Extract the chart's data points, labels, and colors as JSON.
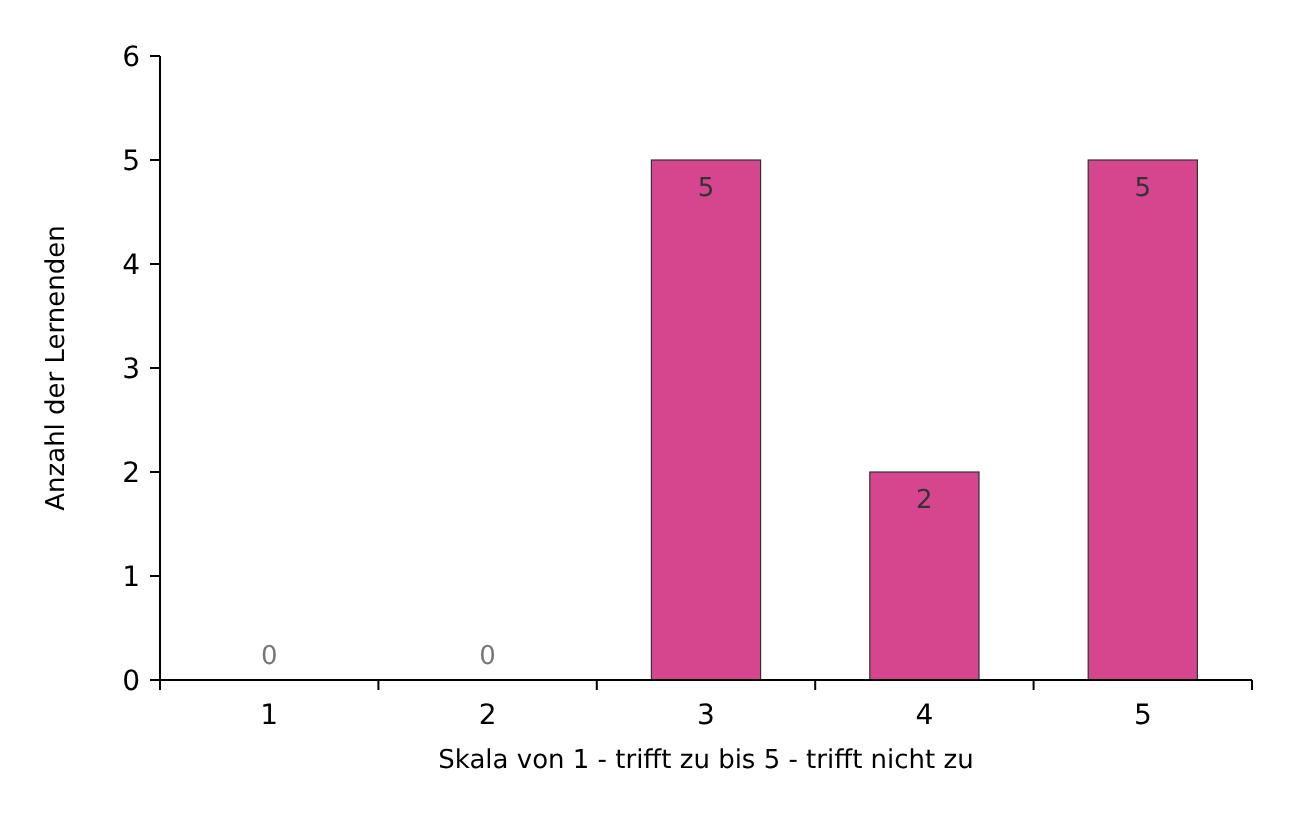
{
  "chart_data": {
    "type": "bar",
    "xlabel": "Skala von 1 - trifft zu bis 5 - trifft nicht zu",
    "ylabel": "Anzahl der Lernenden",
    "categories": [
      "1",
      "2",
      "3",
      "4",
      "5"
    ],
    "values": [
      0,
      0,
      5,
      2,
      5
    ],
    "color": "#d5468e",
    "ylim": [
      0,
      6
    ],
    "yticks": [
      0,
      1,
      2,
      3,
      4,
      5,
      6
    ],
    "grid": false,
    "data_labels": true
  }
}
